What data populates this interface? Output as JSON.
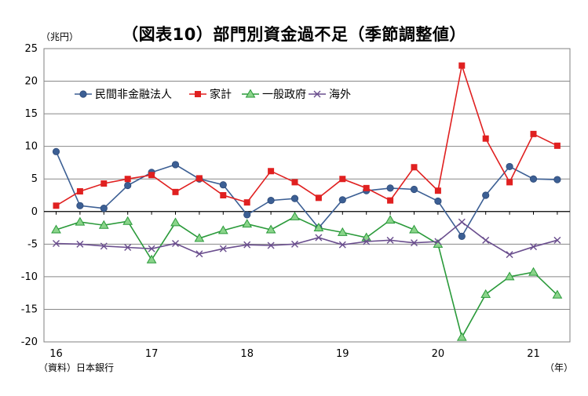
{
  "title": "（図表10）部門別資金過不足（季節調整値）",
  "y_unit": "（兆円）",
  "x_unit": "（年）",
  "source": "（資料）日本銀行",
  "chart_data": {
    "type": "line",
    "ylim": [
      -20,
      25
    ],
    "yticks": [
      25,
      20,
      15,
      10,
      5,
      0,
      -5,
      -10,
      -15,
      -20
    ],
    "x_quarters": 22,
    "xtick_labels": [
      "16",
      "17",
      "18",
      "19",
      "20",
      "21"
    ],
    "grid": true,
    "legend_position": "top-left",
    "series": [
      {
        "name": "民間非金融法人",
        "color": "#3c5f94",
        "marker": "circle",
        "values": [
          9.2,
          0.9,
          0.5,
          4.0,
          6.0,
          7.2,
          5.0,
          4.1,
          -0.5,
          1.7,
          2.0,
          -2.5,
          1.8,
          3.2,
          3.6,
          3.4,
          1.6,
          -3.8,
          2.5,
          6.9,
          5.0,
          4.9
        ]
      },
      {
        "name": "家計",
        "color": "#e02020",
        "marker": "square",
        "values": [
          0.9,
          3.1,
          4.3,
          5.0,
          5.6,
          3.0,
          5.1,
          2.5,
          1.4,
          6.2,
          4.5,
          2.1,
          5.0,
          3.6,
          1.7,
          6.8,
          3.2,
          22.4,
          11.2,
          4.5,
          11.9,
          10.1
        ]
      },
      {
        "name": "一般政府",
        "color": "#2a9a3a",
        "marker": "triangle",
        "values": [
          -2.8,
          -1.6,
          -2.1,
          -1.5,
          -7.4,
          -1.7,
          -4.1,
          -2.9,
          -1.9,
          -2.8,
          -0.8,
          -2.5,
          -3.2,
          -4.0,
          -1.3,
          -2.8,
          -5.0,
          -19.3,
          -12.7,
          -10.0,
          -9.3,
          -12.8
        ]
      },
      {
        "name": "海外",
        "color": "#6a4e8e",
        "marker": "x",
        "values": [
          -4.9,
          -5.0,
          -5.3,
          -5.5,
          -5.7,
          -4.9,
          -6.5,
          -5.7,
          -5.1,
          -5.2,
          -5.0,
          -4.0,
          -5.1,
          -4.6,
          -4.4,
          -4.8,
          -4.6,
          -1.6,
          -4.4,
          -6.6,
          -5.4,
          -4.4
        ]
      }
    ]
  }
}
